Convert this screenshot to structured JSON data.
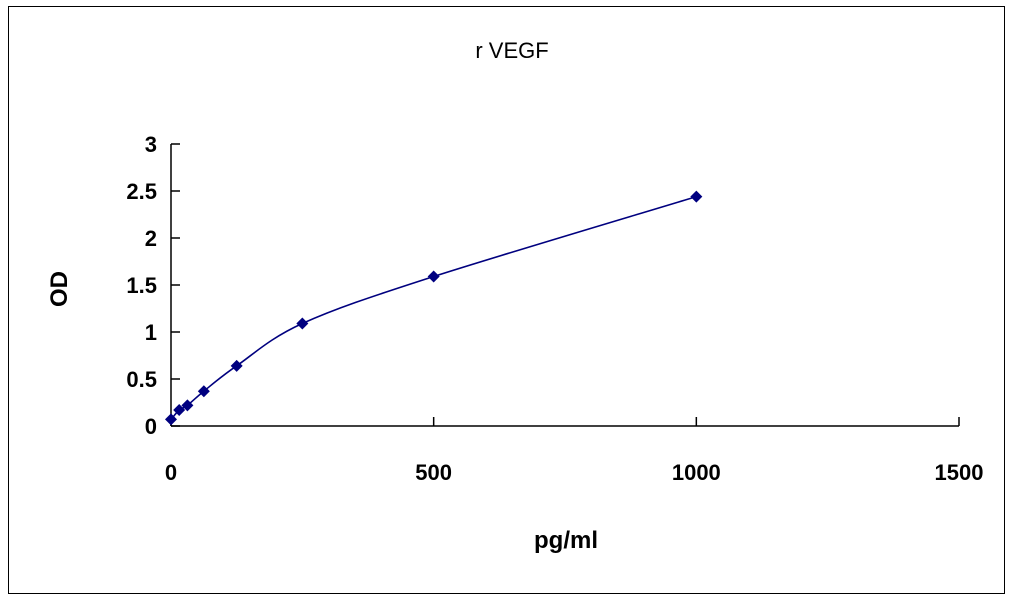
{
  "chart_data": {
    "type": "scatter",
    "title": "r VEGF",
    "xlabel": "pg/ml",
    "ylabel": "OD",
    "xlim": [
      0,
      1500
    ],
    "ylim": [
      0,
      3
    ],
    "x_ticks": [
      0,
      500,
      1000,
      1500
    ],
    "y_ticks": [
      0,
      0.5,
      1,
      1.5,
      2,
      2.5,
      3
    ],
    "grid": false,
    "legend": "none",
    "smooth_line": true,
    "colors": {
      "marker": "#000080",
      "line": "#00007F",
      "axis": "#000000"
    },
    "series": [
      {
        "x": [
          0,
          15.6,
          31.25,
          62.5,
          125,
          250,
          500,
          1000
        ],
        "y": [
          0.07,
          0.17,
          0.22,
          0.37,
          0.64,
          1.09,
          1.59,
          2.44
        ]
      }
    ]
  }
}
